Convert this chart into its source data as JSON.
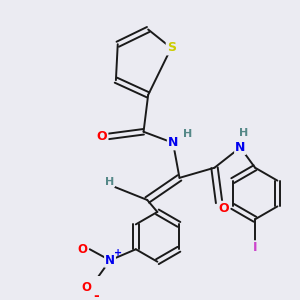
{
  "background_color": "#ebebf2",
  "bond_color": "#1a1a1a",
  "atom_colors": {
    "S": "#cccc00",
    "O": "#ff0000",
    "N": "#0000ee",
    "H": "#558888",
    "I": "#cc44cc",
    "C": "#1a1a1a"
  },
  "figsize": [
    3.0,
    3.0
  ],
  "dpi": 100
}
